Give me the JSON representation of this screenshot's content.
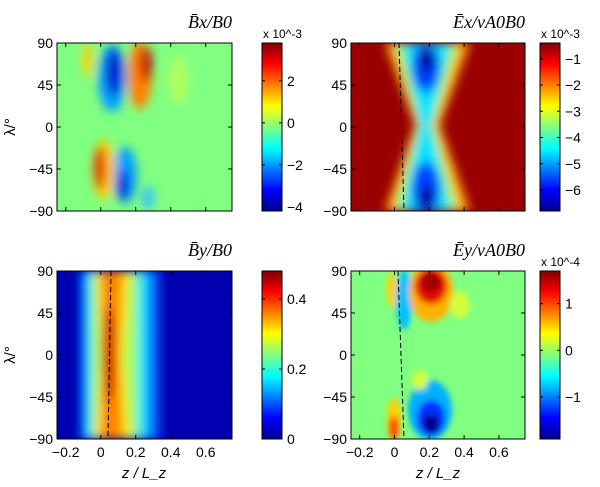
{
  "figure": {
    "ylabel": "λ/°",
    "xlabel": "z / L_z",
    "xticks": [
      "-0.2",
      "0",
      "0.2",
      "0.4",
      "0.6"
    ],
    "yticks": [
      "90",
      "45",
      "0",
      "-45",
      "-90"
    ]
  },
  "chart_data": [
    {
      "type": "heatmap",
      "title": "B̄x/B0",
      "x_range": [
        -0.25,
        0.75
      ],
      "y_range": [
        -90,
        90
      ],
      "colorbar": {
        "multiplier": "x 10^-3",
        "range": [
          -4.2,
          3.8
        ],
        "ticks": [
          "2",
          "0",
          "-2",
          "-4"
        ]
      },
      "dashed_line": false
    },
    {
      "type": "heatmap",
      "title": "Ēx/vA0B0",
      "x_range": [
        -0.25,
        0.75
      ],
      "y_range": [
        -90,
        90
      ],
      "colorbar": {
        "multiplier": "x 10^-3",
        "range": [
          -6.8,
          -0.4
        ],
        "ticks": [
          "-1",
          "-2",
          "-3",
          "-4",
          "-5",
          "-6"
        ]
      },
      "dashed_line": true
    },
    {
      "type": "heatmap",
      "title": "B̄y/B0",
      "x_range": [
        -0.25,
        0.75
      ],
      "y_range": [
        -90,
        90
      ],
      "colorbar": {
        "multiplier": "",
        "range": [
          0,
          0.48
        ],
        "ticks": [
          "0.4",
          "0.2",
          "0"
        ]
      },
      "dashed_line": true
    },
    {
      "type": "heatmap",
      "title": "Ēy/vA0B0",
      "x_range": [
        -0.25,
        0.75
      ],
      "y_range": [
        -90,
        90
      ],
      "colorbar": {
        "multiplier": "x 10^-4",
        "range": [
          -1.9,
          1.7
        ],
        "ticks": [
          "1",
          "0",
          "-1"
        ]
      },
      "dashed_line": true
    }
  ]
}
